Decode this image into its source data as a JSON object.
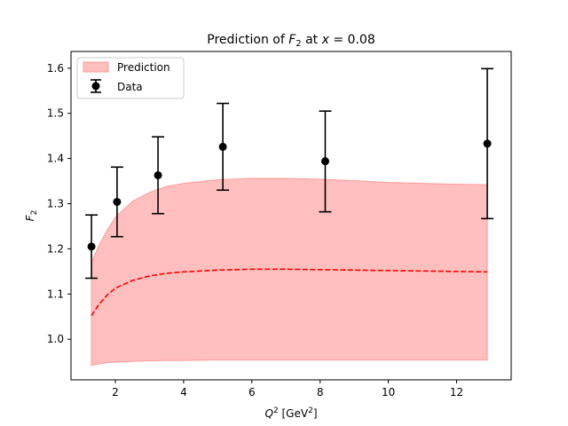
{
  "chart_data": {
    "type": "line",
    "title_parts": {
      "pre": "Prediction of ",
      "f": "F",
      "f_sub": "2",
      "mid": " at ",
      "x": "x",
      "eq": " = 0.08"
    },
    "xlabel_parts": {
      "q": "Q",
      "q_sup": "2",
      "unit_pre": " [GeV",
      "unit_sup": "2",
      "unit_post": "]"
    },
    "ylabel_parts": {
      "f": "F",
      "f_sub": "2"
    },
    "xlim": [
      0.7,
      13.6
    ],
    "ylim": [
      0.91,
      1.637
    ],
    "x_ticks": [
      2,
      4,
      6,
      8,
      10,
      12
    ],
    "y_ticks": [
      1.0,
      1.1,
      1.2,
      1.3,
      1.4,
      1.5,
      1.6
    ],
    "x_tick_labels": [
      "2",
      "4",
      "6",
      "8",
      "10",
      "12"
    ],
    "y_tick_labels": [
      "1.0",
      "1.1",
      "1.2",
      "1.3",
      "1.4",
      "1.5",
      "1.6"
    ],
    "grid": false,
    "legend_position": "top-left",
    "legend": {
      "prediction_label": "Prediction",
      "data_label": "Data"
    },
    "colors": {
      "band_fill": "#ffbfbf",
      "band_edge": "#ff9a9a",
      "central_line": "#ff0000",
      "data": "#000000"
    },
    "prediction": {
      "x": [
        1.3,
        1.5,
        1.75,
        2.0,
        2.5,
        3.0,
        3.5,
        4.0,
        5.0,
        6.0,
        7.0,
        8.0,
        9.0,
        10.0,
        11.0,
        12.0,
        12.9
      ],
      "central": [
        1.052,
        1.075,
        1.097,
        1.113,
        1.13,
        1.14,
        1.146,
        1.149,
        1.153,
        1.155,
        1.155,
        1.154,
        1.153,
        1.152,
        1.151,
        1.15,
        1.149
      ],
      "upper": [
        1.17,
        1.205,
        1.24,
        1.27,
        1.305,
        1.325,
        1.338,
        1.345,
        1.353,
        1.356,
        1.356,
        1.354,
        1.351,
        1.347,
        1.345,
        1.343,
        1.342
      ],
      "lower": [
        0.942,
        0.945,
        0.948,
        0.949,
        0.951,
        0.952,
        0.953,
        0.953,
        0.954,
        0.954,
        0.954,
        0.954,
        0.954,
        0.954,
        0.954,
        0.954,
        0.954
      ]
    },
    "data": {
      "x": [
        1.3,
        2.05,
        3.25,
        5.15,
        8.15,
        12.9
      ],
      "y": [
        1.205,
        1.304,
        1.363,
        1.426,
        1.394,
        1.433
      ],
      "err_low": [
        1.135,
        1.227,
        1.278,
        1.33,
        1.282,
        1.267
      ],
      "err_high": [
        1.275,
        1.381,
        1.448,
        1.522,
        1.505,
        1.599
      ]
    }
  }
}
